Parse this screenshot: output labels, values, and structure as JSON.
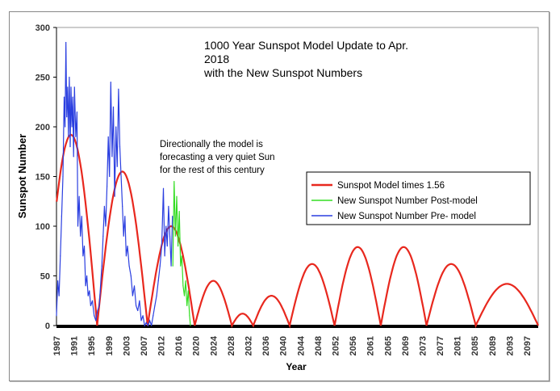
{
  "chart_data": {
    "type": "line",
    "title": [
      "1000 Year Sunspot Model Update to Apr.",
      "2018",
      "with the New Sunspot Numbers"
    ],
    "annotation": [
      "Directionally  the model is",
      "forecasting a very quiet Sun",
      "for the rest of this century"
    ],
    "xlabel": "Year",
    "ylabel": "Sunspot Number",
    "ylim": [
      0,
      300
    ],
    "xlim": [
      1987,
      2099.6
    ],
    "yticks": [
      0,
      50,
      100,
      150,
      200,
      250,
      300
    ],
    "xtick_labels": [
      "1987",
      "1991",
      "1995",
      "1999",
      "2003",
      "2007",
      "2012",
      "2016",
      "2020",
      "2024",
      "2028",
      "2032",
      "2036",
      "2040",
      "2044",
      "2048",
      "2052",
      "2056",
      "2061",
      "2065",
      "2069",
      "2073",
      "2077",
      "2081",
      "2085",
      "2089",
      "2093",
      "2097"
    ],
    "legend_position": "right",
    "series": [
      {
        "name": "Sunspot Model times 1.56",
        "color": "#e8281e",
        "arches": [
          [
            1984.3,
            1996.5,
            192
          ],
          [
            1996.5,
            2008.3,
            155
          ],
          [
            2008.3,
            2019.3,
            100
          ],
          [
            2019.3,
            2028,
            45
          ],
          [
            2028,
            2033,
            12
          ],
          [
            2033,
            2041.5,
            30
          ],
          [
            2041.5,
            2052,
            62
          ],
          [
            2052,
            2062.8,
            79
          ],
          [
            2062.8,
            2073.5,
            79
          ],
          [
            2073.5,
            2085,
            62
          ],
          [
            2085,
            2099.6,
            42
          ]
        ]
      },
      {
        "name": "New Sunspot Number Post-model",
        "color": "#33dd22",
        "points": [
          [
            2014.2,
            60
          ],
          [
            2014.5,
            145
          ],
          [
            2014.8,
            90
          ],
          [
            2015.1,
            130
          ],
          [
            2015.4,
            80
          ],
          [
            2015.7,
            115
          ],
          [
            2016.0,
            60
          ],
          [
            2016.3,
            70
          ],
          [
            2016.6,
            40
          ],
          [
            2016.9,
            30
          ],
          [
            2017.2,
            45
          ],
          [
            2017.5,
            20
          ],
          [
            2017.8,
            35
          ],
          [
            2018.1,
            10
          ],
          [
            2018.3,
            0
          ]
        ]
      },
      {
        "name": "New Sunspot Number Pre- model",
        "color": "#2b3fe0",
        "points": [
          [
            1987.0,
            10
          ],
          [
            1987.3,
            45
          ],
          [
            1987.6,
            30
          ],
          [
            1987.9,
            70
          ],
          [
            1988.2,
            110
          ],
          [
            1988.5,
            150
          ],
          [
            1988.8,
            230
          ],
          [
            1989.0,
            200
          ],
          [
            1989.2,
            285
          ],
          [
            1989.4,
            210
          ],
          [
            1989.6,
            240
          ],
          [
            1989.8,
            190
          ],
          [
            1990.0,
            250
          ],
          [
            1990.2,
            180
          ],
          [
            1990.4,
            240
          ],
          [
            1990.6,
            200
          ],
          [
            1990.8,
            230
          ],
          [
            1991.0,
            170
          ],
          [
            1991.2,
            240
          ],
          [
            1991.5,
            190
          ],
          [
            1991.8,
            215
          ],
          [
            1992.0,
            100
          ],
          [
            1992.3,
            130
          ],
          [
            1992.6,
            90
          ],
          [
            1992.9,
            110
          ],
          [
            1993.2,
            70
          ],
          [
            1993.5,
            80
          ],
          [
            1993.8,
            40
          ],
          [
            1994.1,
            50
          ],
          [
            1994.4,
            30
          ],
          [
            1994.7,
            35
          ],
          [
            1995.0,
            20
          ],
          [
            1995.4,
            25
          ],
          [
            1995.8,
            10
          ],
          [
            1996.2,
            5
          ],
          [
            1996.6,
            15
          ],
          [
            1997.0,
            20
          ],
          [
            1997.3,
            40
          ],
          [
            1997.6,
            60
          ],
          [
            1997.9,
            90
          ],
          [
            1998.2,
            120
          ],
          [
            1998.5,
            100
          ],
          [
            1998.8,
            140
          ],
          [
            1999.1,
            190
          ],
          [
            1999.4,
            150
          ],
          [
            1999.7,
            245
          ],
          [
            2000.0,
            170
          ],
          [
            2000.3,
            220
          ],
          [
            2000.6,
            130
          ],
          [
            2000.9,
            200
          ],
          [
            2001.2,
            160
          ],
          [
            2001.5,
            238
          ],
          [
            2001.8,
            180
          ],
          [
            2002.1,
            150
          ],
          [
            2002.4,
            120
          ],
          [
            2002.7,
            90
          ],
          [
            2003.0,
            110
          ],
          [
            2003.3,
            70
          ],
          [
            2003.6,
            80
          ],
          [
            2004.0,
            60
          ],
          [
            2004.4,
            50
          ],
          [
            2004.8,
            30
          ],
          [
            2005.2,
            40
          ],
          [
            2005.6,
            20
          ],
          [
            2006.0,
            15
          ],
          [
            2006.4,
            25
          ],
          [
            2006.8,
            5
          ],
          [
            2007.2,
            10
          ],
          [
            2007.6,
            0
          ],
          [
            2008.0,
            3
          ],
          [
            2008.4,
            0
          ],
          [
            2008.8,
            5
          ],
          [
            2009.2,
            0
          ],
          [
            2009.6,
            10
          ],
          [
            2010.0,
            20
          ],
          [
            2010.4,
            30
          ],
          [
            2010.8,
            45
          ],
          [
            2011.2,
            60
          ],
          [
            2011.6,
            80
          ],
          [
            2012.0,
            138
          ],
          [
            2012.3,
            70
          ],
          [
            2012.6,
            100
          ],
          [
            2012.9,
            80
          ],
          [
            2013.2,
            120
          ],
          [
            2013.5,
            90
          ],
          [
            2013.8,
            60
          ],
          [
            2014.1,
            110
          ]
        ]
      }
    ]
  }
}
